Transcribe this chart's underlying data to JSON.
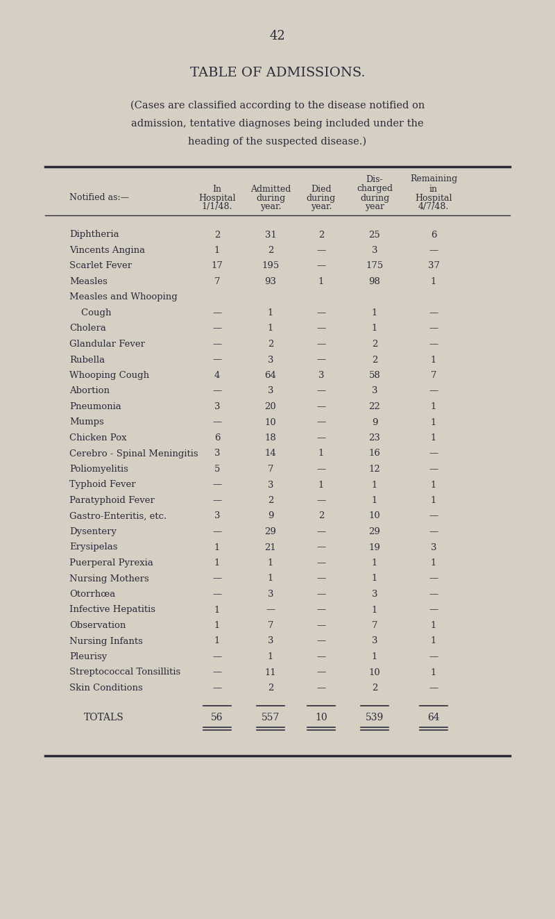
{
  "page_number": "42",
  "title": "TABLE OF ADMISSIONS.",
  "subtitle_lines": [
    "(Cases are classified according to the disease notified on",
    "admission, tentative diagnoses being included under the",
    "heading of the suspected disease.)"
  ],
  "col_headers_line1": [
    "",
    "",
    "Dis-",
    "Remaining"
  ],
  "col_headers_line2": [
    "",
    "In",
    "Admitted",
    "Died",
    "charged",
    "in"
  ],
  "col_headers_line3": [
    "Notified as:—",
    "Hospital",
    "during",
    "during",
    "during",
    "Hospital"
  ],
  "col_headers_line4": [
    "",
    "1/1/48.",
    "year.",
    "year.",
    "year",
    "4/7/48."
  ],
  "rows": [
    [
      "Diphtheria",
      "2",
      "31",
      "2",
      "25",
      "6"
    ],
    [
      "Vincents Angina",
      "1",
      "2",
      "—",
      "3",
      "—"
    ],
    [
      "Scarlet Fever",
      "17",
      "195",
      "—",
      "175",
      "37"
    ],
    [
      "Measles",
      "7",
      "93",
      "1",
      "98",
      "1"
    ],
    [
      "Measles and Whooping",
      "",
      "",
      "",
      "",
      ""
    ],
    [
      "    Cough",
      "—",
      "1",
      "—",
      "1",
      "—"
    ],
    [
      "Cholera",
      "—",
      "1",
      "—",
      "1",
      "—"
    ],
    [
      "Glandular Fever",
      "—",
      "2",
      "—",
      "2",
      "—"
    ],
    [
      "Rubella",
      "—",
      "3",
      "—",
      "2",
      "1"
    ],
    [
      "Whooping Cough",
      "4",
      "64",
      "3",
      "58",
      "7"
    ],
    [
      "Abortion",
      "—",
      "3",
      "—",
      "3",
      "—"
    ],
    [
      "Pneumonia",
      "3",
      "20",
      "—",
      "22",
      "1"
    ],
    [
      "Mumps",
      "—",
      "10",
      "—",
      "9",
      "1"
    ],
    [
      "Chicken Pox",
      "6",
      "18",
      "—",
      "23",
      "1"
    ],
    [
      "Cerebro - Spinal Meningitis",
      "3",
      "14",
      "1",
      "16",
      "—"
    ],
    [
      "Poliomyelitis",
      "5",
      "7",
      "—",
      "12",
      "—"
    ],
    [
      "Typhoid Fever",
      "—",
      "3",
      "1",
      "1",
      "1"
    ],
    [
      "Paratyphoid Fever",
      "—",
      "2",
      "—",
      "1",
      "1"
    ],
    [
      "Gastro-Enteritis, etc.",
      "3",
      "9",
      "2",
      "10",
      "—"
    ],
    [
      "Dysentery",
      "—",
      "29",
      "—",
      "29",
      "—"
    ],
    [
      "Erysipelas",
      "1",
      "21",
      "—",
      "19",
      "3"
    ],
    [
      "Puerperal Pyrexia",
      "1",
      "1",
      "—",
      "1",
      "1"
    ],
    [
      "Nursing Mothers",
      "—",
      "1",
      "—",
      "1",
      "—"
    ],
    [
      "Otorrhœa",
      "—",
      "3",
      "—",
      "3",
      "—"
    ],
    [
      "Infective Hepatitis",
      "1",
      "—",
      "—",
      "1",
      "—"
    ],
    [
      "Observation",
      "1",
      "7",
      "—",
      "7",
      "1"
    ],
    [
      "Nursing Infants",
      "1",
      "3",
      "—",
      "3",
      "1"
    ],
    [
      "Pleurisy",
      "—",
      "1",
      "—",
      "1",
      "—"
    ],
    [
      "Streptococcal Tonsillitis",
      "—",
      "11",
      "—",
      "10",
      "1"
    ],
    [
      "Skin Conditions",
      "—",
      "2",
      "—",
      "2",
      "—"
    ]
  ],
  "totals": [
    "TOTALS",
    "56",
    "557",
    "10",
    "539",
    "64"
  ],
  "bg_color": "#d6d0c4",
  "text_color": "#2a2a3a",
  "font_family": "serif"
}
